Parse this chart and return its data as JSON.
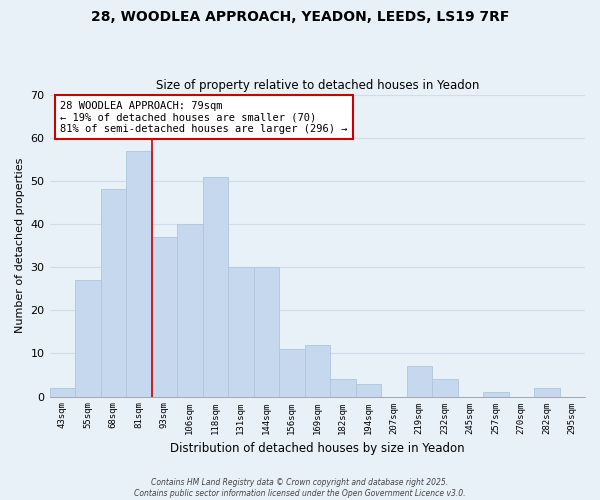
{
  "title_line1": "28, WOODLEA APPROACH, YEADON, LEEDS, LS19 7RF",
  "title_line2": "Size of property relative to detached houses in Yeadon",
  "xlabel": "Distribution of detached houses by size in Yeadon",
  "ylabel": "Number of detached properties",
  "bar_labels": [
    "43sqm",
    "55sqm",
    "68sqm",
    "81sqm",
    "93sqm",
    "106sqm",
    "118sqm",
    "131sqm",
    "144sqm",
    "156sqm",
    "169sqm",
    "182sqm",
    "194sqm",
    "207sqm",
    "219sqm",
    "232sqm",
    "245sqm",
    "257sqm",
    "270sqm",
    "282sqm",
    "295sqm"
  ],
  "bar_values": [
    2,
    27,
    48,
    57,
    37,
    40,
    51,
    30,
    30,
    11,
    12,
    4,
    3,
    0,
    7,
    4,
    0,
    1,
    0,
    2,
    0
  ],
  "bar_color": "#c5d8ed",
  "bar_edge_color": "#aec6de",
  "vline_x": 3.5,
  "vline_color": "#cc0000",
  "annotation_text": "28 WOODLEA APPROACH: 79sqm\n← 19% of detached houses are smaller (70)\n81% of semi-detached houses are larger (296) →",
  "annotation_box_color": "#ffffff",
  "annotation_box_edge": "#cc0000",
  "ylim": [
    0,
    70
  ],
  "yticks": [
    0,
    10,
    20,
    30,
    40,
    50,
    60,
    70
  ],
  "bg_color": "#e8f0f8",
  "grid_color": "#d0dce8",
  "footer_line1": "Contains HM Land Registry data © Crown copyright and database right 2025.",
  "footer_line2": "Contains public sector information licensed under the Open Government Licence v3.0."
}
